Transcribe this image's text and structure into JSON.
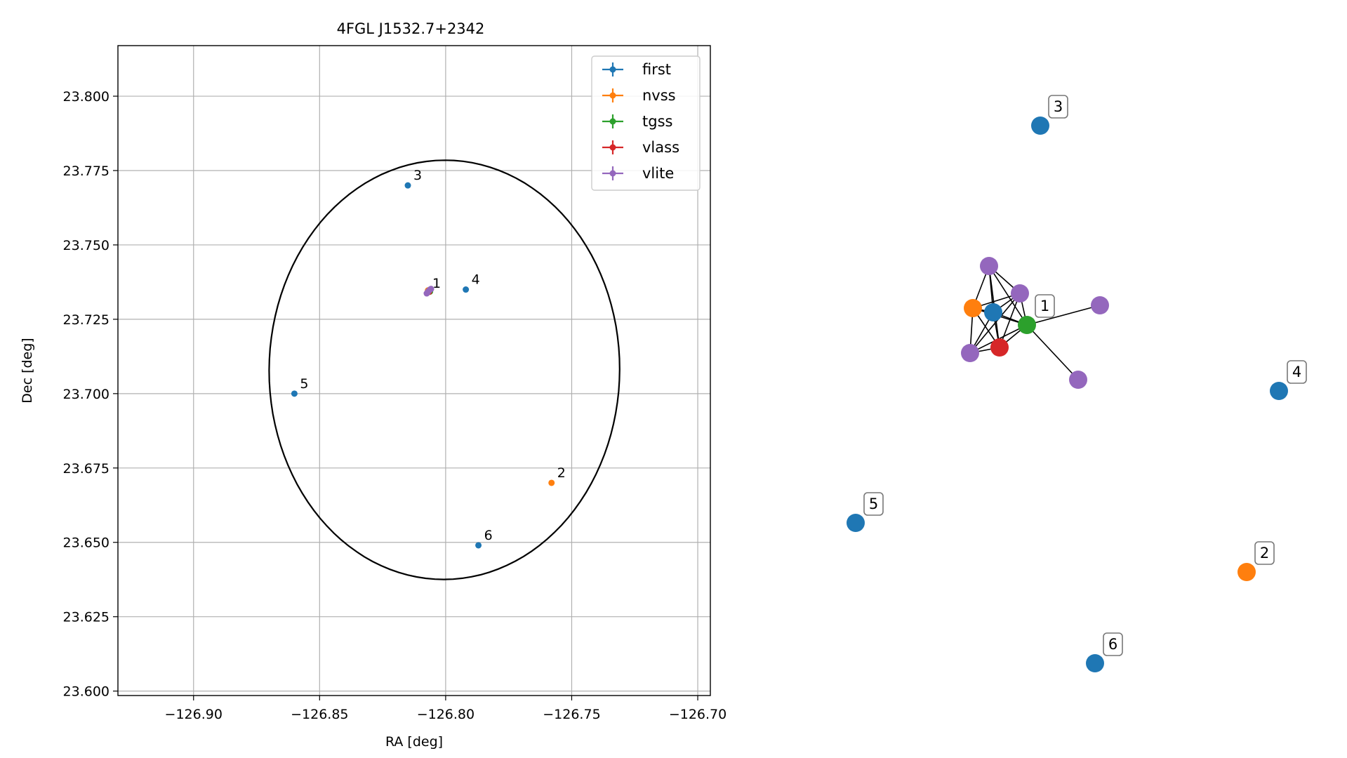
{
  "chart_data": [
    {
      "type": "scatter",
      "title": "4FGL J1532.7+2342",
      "xlabel": "RA [deg]",
      "ylabel": "Dec [deg]",
      "xlim": [
        -126.93,
        -126.695
      ],
      "ylim": [
        23.5985,
        23.817
      ],
      "xticks": [
        "−126.90",
        "−126.85",
        "−126.80",
        "−126.75",
        "−126.70"
      ],
      "xtick_values": [
        -126.9,
        -126.85,
        -126.8,
        -126.75,
        -126.7
      ],
      "yticks": [
        "23.600",
        "23.625",
        "23.650",
        "23.675",
        "23.700",
        "23.725",
        "23.750",
        "23.775",
        "23.800"
      ],
      "ytick_values": [
        23.6,
        23.625,
        23.65,
        23.675,
        23.7,
        23.725,
        23.75,
        23.775,
        23.8
      ],
      "grid": true,
      "legend_position": "top-right",
      "series": [
        {
          "name": "first",
          "color": "#1f77b4",
          "points": [
            {
              "x": -126.815,
              "y": 23.77,
              "label": "3"
            },
            {
              "x": -126.792,
              "y": 23.735,
              "label": "4"
            },
            {
              "x": -126.86,
              "y": 23.7,
              "label": "5"
            },
            {
              "x": -126.787,
              "y": 23.649,
              "label": "6"
            },
            {
              "x": -126.8065,
              "y": 23.7345,
              "label": ""
            }
          ]
        },
        {
          "name": "nvss",
          "color": "#ff7f0e",
          "points": [
            {
              "x": -126.758,
              "y": 23.67,
              "label": "2"
            },
            {
              "x": -126.807,
              "y": 23.7347,
              "label": ""
            }
          ]
        },
        {
          "name": "tgss",
          "color": "#2ca02c",
          "points": [
            {
              "x": -126.8062,
              "y": 23.7343,
              "label": ""
            }
          ]
        },
        {
          "name": "vlass",
          "color": "#d62728",
          "points": [
            {
              "x": -126.8066,
              "y": 23.7342,
              "label": ""
            }
          ]
        },
        {
          "name": "vlite",
          "color": "#9467bd",
          "points": [
            {
              "x": -126.8075,
              "y": 23.7337,
              "label": "1"
            },
            {
              "x": -126.8062,
              "y": 23.735,
              "label": ""
            },
            {
              "x": -126.8068,
              "y": 23.7345,
              "label": ""
            },
            {
              "x": -126.8058,
              "y": 23.7352,
              "label": ""
            },
            {
              "x": -126.8072,
              "y": 23.734,
              "label": ""
            }
          ]
        }
      ],
      "ellipse": {
        "center": [
          -126.8005,
          23.708
        ],
        "semi_axis_x": 0.0695,
        "semi_axis_y": 0.0705,
        "tilt_deg": -9
      }
    },
    {
      "type": "network",
      "nodes": [
        {
          "id": "n1",
          "label": "1",
          "color": "#2ca02c"
        },
        {
          "id": "n2",
          "label": "2",
          "color": "#ff7f0e"
        },
        {
          "id": "n3",
          "label": "3",
          "color": "#1f77b4"
        },
        {
          "id": "n4",
          "label": "4",
          "color": "#1f77b4"
        },
        {
          "id": "n5",
          "label": "5",
          "color": "#1f77b4"
        },
        {
          "id": "n6",
          "label": "6",
          "color": "#1f77b4"
        },
        {
          "id": "blue",
          "label": "",
          "color": "#1f77b4"
        },
        {
          "id": "orange",
          "label": "",
          "color": "#ff7f0e"
        },
        {
          "id": "red",
          "label": "",
          "color": "#d62728"
        },
        {
          "id": "p1",
          "label": "",
          "color": "#9467bd"
        },
        {
          "id": "p2",
          "label": "",
          "color": "#9467bd"
        },
        {
          "id": "p3",
          "label": "",
          "color": "#9467bd"
        },
        {
          "id": "p4",
          "label": "",
          "color": "#9467bd"
        },
        {
          "id": "p5",
          "label": "",
          "color": "#9467bd"
        }
      ],
      "edges": [
        [
          "n1",
          "blue"
        ],
        [
          "n1",
          "orange"
        ],
        [
          "n1",
          "red"
        ],
        [
          "n1",
          "p1"
        ],
        [
          "n1",
          "p2"
        ],
        [
          "n1",
          "p3"
        ],
        [
          "n1",
          "p4"
        ],
        [
          "n1",
          "p5"
        ],
        [
          "blue",
          "orange"
        ],
        [
          "blue",
          "red"
        ],
        [
          "blue",
          "p1"
        ],
        [
          "blue",
          "p2"
        ],
        [
          "blue",
          "p3"
        ],
        [
          "orange",
          "red"
        ],
        [
          "orange",
          "p1"
        ],
        [
          "orange",
          "p2"
        ],
        [
          "orange",
          "p3"
        ],
        [
          "red",
          "p1"
        ],
        [
          "red",
          "p2"
        ],
        [
          "red",
          "p3"
        ],
        [
          "p1",
          "p2"
        ],
        [
          "p2",
          "p3"
        ]
      ]
    }
  ]
}
